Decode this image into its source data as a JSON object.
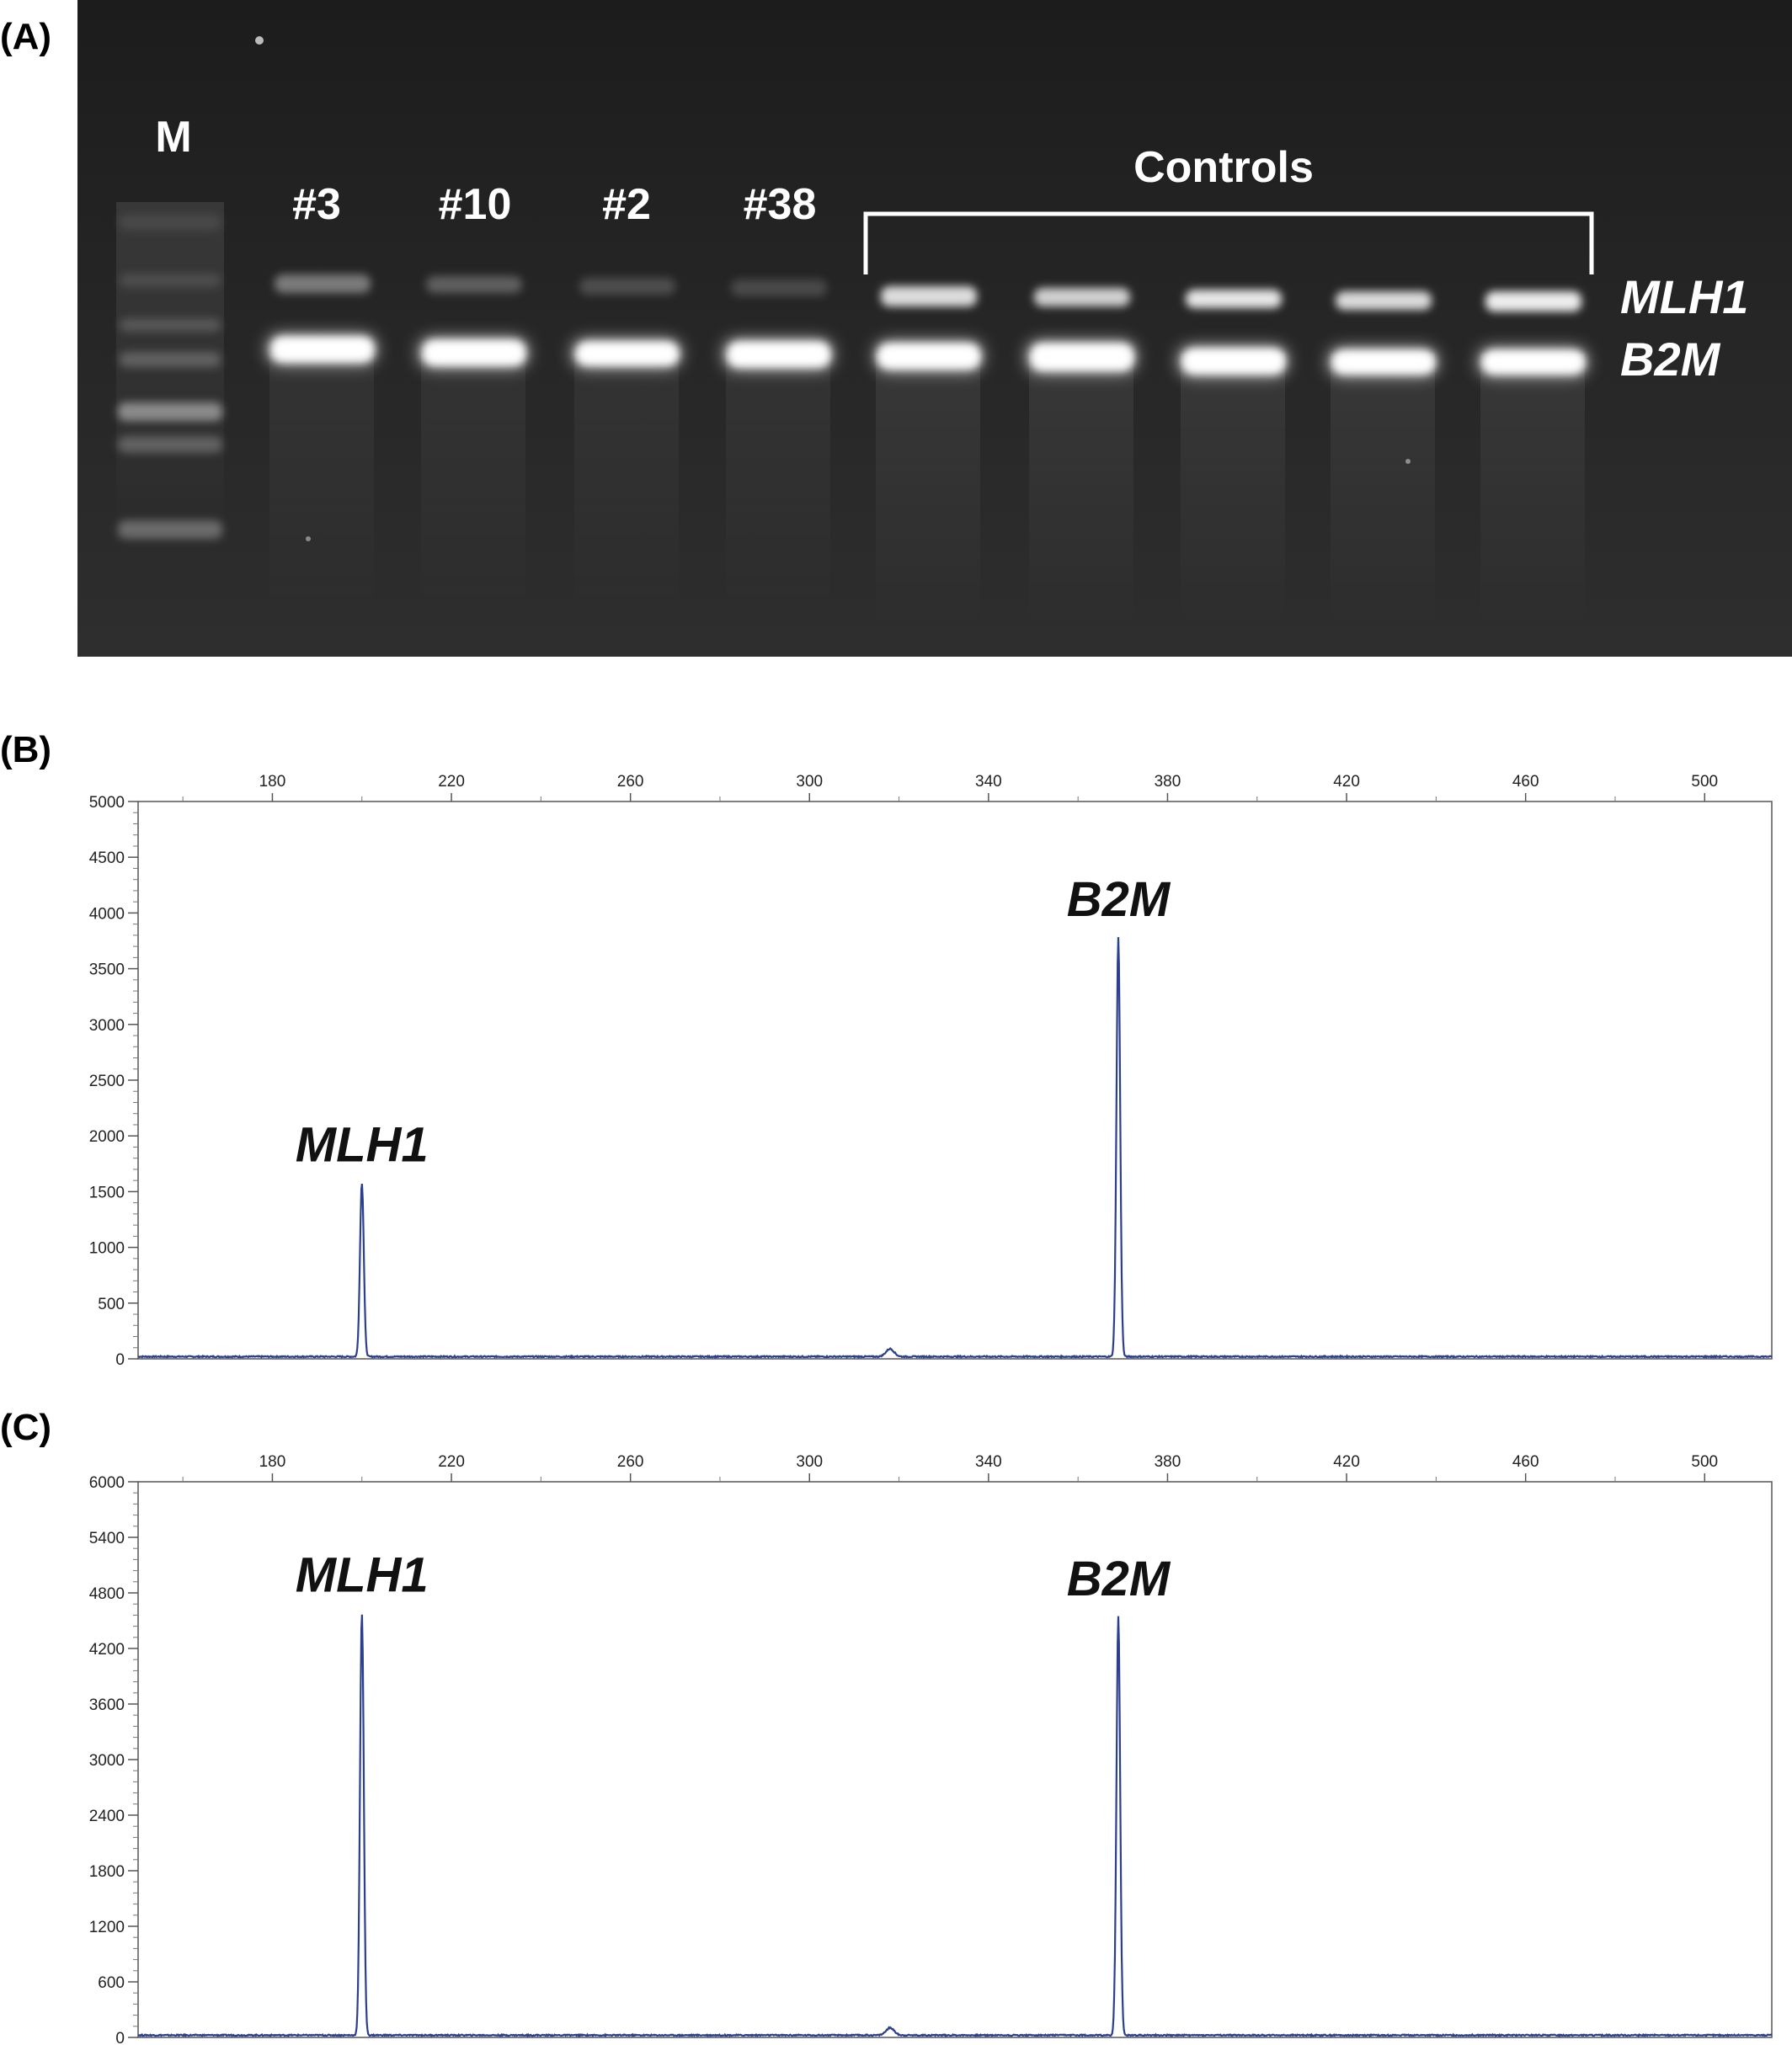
{
  "panels": {
    "a": {
      "label": "(A)"
    },
    "b": {
      "label": "(B)"
    },
    "c": {
      "label": "(C)"
    }
  },
  "gel": {
    "marker_label": "M",
    "lanes": [
      "#3",
      "#10",
      "#2",
      "#38"
    ],
    "controls_label": "Controls",
    "control_lane_count": 5,
    "band_labels": {
      "upper": "MLH1",
      "lower": "B2M"
    }
  },
  "chart_data": [
    {
      "type": "line",
      "panel": "(B)",
      "xlabel": "",
      "ylabel": "",
      "xlim": [
        150,
        515
      ],
      "ylim": [
        0,
        5000
      ],
      "x_ticks": [
        180,
        220,
        260,
        300,
        340,
        380,
        420,
        460,
        500
      ],
      "y_ticks": [
        0,
        500,
        1000,
        1500,
        2000,
        2500,
        3000,
        3500,
        4000,
        4500,
        5000
      ],
      "grid": false,
      "color": "#2b3f8c",
      "peaks": [
        {
          "label": "MLH1",
          "x": 200,
          "y": 1560
        },
        {
          "label": "",
          "x": 318,
          "y": 70
        },
        {
          "label": "B2M",
          "x": 369,
          "y": 3760
        }
      ]
    },
    {
      "type": "line",
      "panel": "(C)",
      "xlabel": "",
      "ylabel": "",
      "xlim": [
        150,
        515
      ],
      "ylim": [
        0,
        6000
      ],
      "x_ticks": [
        180,
        220,
        260,
        300,
        340,
        380,
        420,
        460,
        500
      ],
      "y_ticks": [
        0,
        600,
        1200,
        1800,
        2400,
        3000,
        3600,
        4200,
        4800,
        5400,
        6000
      ],
      "grid": false,
      "color": "#2b3f8c",
      "peaks": [
        {
          "label": "MLH1",
          "x": 200,
          "y": 4560
        },
        {
          "label": "",
          "x": 318,
          "y": 80
        },
        {
          "label": "B2M",
          "x": 369,
          "y": 4520
        }
      ]
    }
  ]
}
